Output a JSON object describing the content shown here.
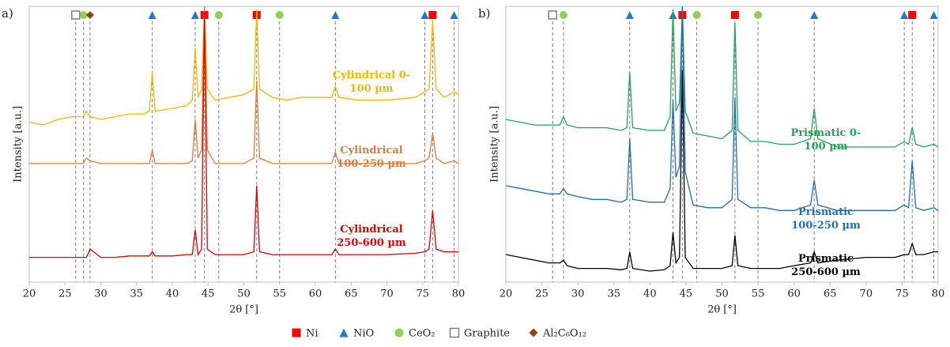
{
  "chart_data": [
    {
      "type": "line",
      "panel": "a)",
      "xlabel": "2θ [°]",
      "ylabel": "Intensity [a.u.]",
      "xlim": [
        20,
        80
      ],
      "xticks": [
        20,
        25,
        30,
        35,
        40,
        45,
        50,
        55,
        60,
        65,
        70,
        75,
        80
      ],
      "ylim": [
        0,
        100
      ],
      "x": [
        20,
        22,
        24,
        26,
        27.5,
        28,
        28.5,
        30,
        32,
        34,
        36,
        36.8,
        37.2,
        37.6,
        40,
        42,
        42.8,
        43.2,
        43.6,
        44.1,
        44.5,
        44.9,
        46,
        48,
        50,
        51.4,
        51.8,
        52.2,
        54,
        56,
        58,
        60,
        62.3,
        62.8,
        63.3,
        66,
        70,
        74,
        75.3,
        75.9,
        76.4,
        76.9,
        78,
        79.4,
        80
      ],
      "series": [
        {
          "name": "Cylindrical 0-100 µm",
          "color": "#f5b800",
          "values": [
            58,
            57,
            59,
            60,
            60,
            62,
            60,
            59,
            60,
            61,
            61,
            62,
            76,
            62,
            63,
            64,
            66,
            85,
            67,
            70,
            100,
            70,
            66,
            67,
            68,
            70,
            99,
            70,
            67,
            66,
            67,
            67,
            67,
            71,
            67,
            66,
            66,
            67,
            69,
            70,
            95,
            70,
            67,
            69,
            68
          ]
        },
        {
          "name": "Cylindrical 100-250 µm",
          "color": "#e07b39",
          "values": [
            43,
            43,
            43,
            43,
            43,
            45,
            44,
            43,
            43,
            43,
            43,
            43,
            48,
            43,
            43,
            43,
            44,
            59,
            45,
            48,
            100,
            48,
            43,
            43,
            43,
            45,
            73,
            45,
            43,
            43,
            43,
            43,
            43,
            47,
            43,
            43,
            43,
            43,
            44,
            45,
            54,
            45,
            43,
            44,
            43
          ]
        },
        {
          "name": "Cylindrical 250-600 µm",
          "color": "#e00000",
          "values": [
            9,
            9,
            9,
            9,
            9,
            9,
            12,
            9,
            9,
            9.5,
            9.5,
            9.5,
            11,
            9.5,
            9.5,
            10,
            10,
            19,
            10,
            12,
            98,
            12,
            10,
            10,
            10,
            11,
            35,
            11,
            10,
            10,
            10,
            10,
            10,
            12,
            10,
            10,
            10,
            10.5,
            11,
            12,
            26,
            12,
            11,
            11,
            11
          ]
        }
      ],
      "phase_positions": [
        [
          44.5,
          51.8,
          76.4
        ],
        [
          37.2,
          43.2,
          62.8,
          75.3,
          79.4
        ],
        [
          27.6,
          46.5,
          55
        ],
        [
          26.5
        ],
        [
          28.5
        ]
      ]
    },
    {
      "type": "line",
      "panel": "b)",
      "xlabel": "2θ [°]",
      "ylabel": "Intensity [a.u.]",
      "xlim": [
        20,
        80
      ],
      "xticks": [
        20,
        25,
        30,
        35,
        40,
        45,
        50,
        55,
        60,
        65,
        70,
        75,
        80
      ],
      "ylim": [
        0,
        100
      ],
      "x": [
        20,
        22,
        24,
        26,
        27.5,
        28,
        28.5,
        30,
        32,
        34,
        36,
        36.8,
        37.2,
        37.6,
        40,
        42,
        42.8,
        43.2,
        43.6,
        44.1,
        44.5,
        44.9,
        46,
        48,
        50,
        51.4,
        51.8,
        52.2,
        54,
        56,
        58,
        60,
        62.3,
        62.8,
        63.3,
        66,
        70,
        74,
        75.3,
        75.9,
        76.4,
        76.9,
        78,
        79.4,
        80
      ],
      "series": [
        {
          "name": "Prismatic 0-100 µm",
          "color": "#21a55a",
          "values": [
            59,
            58,
            57,
            57,
            57,
            60,
            57,
            56,
            56,
            56,
            55,
            56,
            76,
            56,
            55,
            55,
            60,
            99,
            62,
            65,
            100,
            62,
            54,
            53,
            52,
            55,
            94,
            55,
            51,
            51,
            50,
            50,
            52,
            63,
            52,
            49,
            49,
            49,
            51,
            50,
            56,
            50,
            49,
            50,
            49
          ]
        },
        {
          "name": "Prismatic 100-250 µm",
          "color": "#1f6fb5",
          "values": [
            35,
            34,
            33,
            32,
            32,
            34,
            32,
            31,
            30,
            30,
            29,
            30,
            52,
            30,
            29,
            29,
            34,
            66,
            38,
            42,
            100,
            40,
            28,
            27,
            27,
            30,
            67,
            30,
            27,
            27,
            26,
            26,
            28,
            37,
            28,
            26,
            26,
            26,
            28,
            27,
            44,
            27,
            26,
            27,
            26
          ]
        },
        {
          "name": "Prismatic 250-600 µm",
          "color": "#000000",
          "values": [
            10,
            9,
            8,
            7,
            7,
            8,
            6,
            5,
            5,
            5,
            4.5,
            5,
            11,
            5,
            4,
            4.5,
            6,
            18,
            7,
            9,
            77,
            9,
            5,
            5,
            5,
            6,
            17,
            6,
            5,
            5,
            5,
            6,
            7,
            11,
            7,
            8,
            9,
            9,
            10,
            10,
            14,
            10,
            10,
            11,
            11
          ]
        }
      ],
      "phase_positions": [
        [
          44.5,
          51.8,
          76.4
        ],
        [
          37.2,
          43.2,
          62.8,
          75.3,
          79.4
        ],
        [
          28,
          46.5,
          55
        ],
        [
          26.5
        ],
        []
      ]
    }
  ],
  "legend": [
    {
      "name": "Ni",
      "color": "#ff0000",
      "marker": "square"
    },
    {
      "name": "NiO",
      "color": "#1f77d4",
      "marker": "triangle"
    },
    {
      "name": "CeO₂",
      "color": "#92d050",
      "marker": "circle"
    },
    {
      "name": "Graphite",
      "color": "#7f7f7f",
      "marker": "open-square"
    },
    {
      "name": "Al₂C₆O₁₂",
      "color": "#8b4513",
      "marker": "diamond"
    }
  ]
}
